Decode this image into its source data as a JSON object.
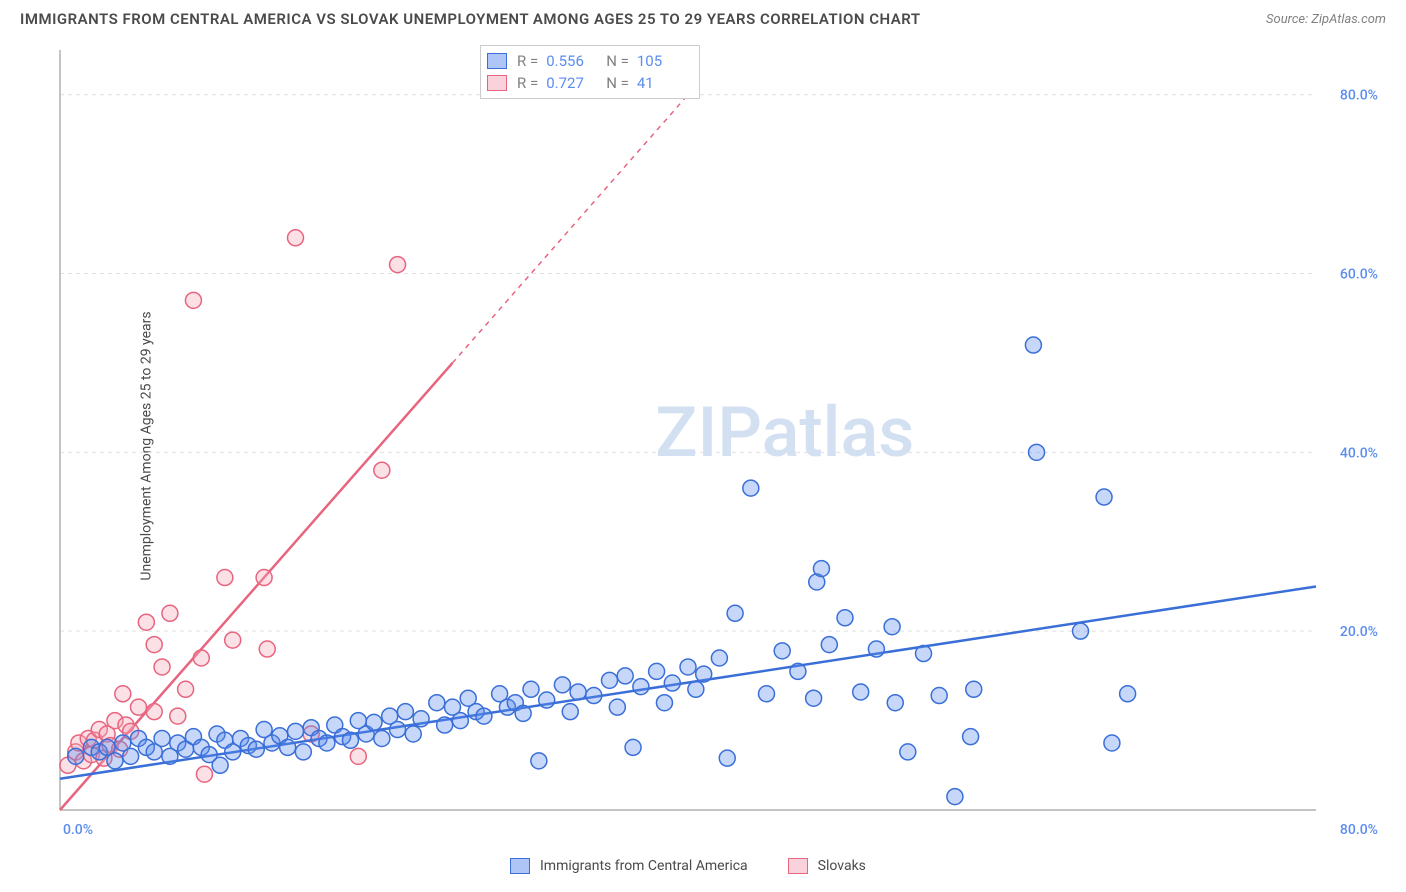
{
  "title": "IMMIGRANTS FROM CENTRAL AMERICA VS SLOVAK UNEMPLOYMENT AMONG AGES 25 TO 29 YEARS CORRELATION CHART",
  "source": "Source: ZipAtlas.com",
  "ylabel": "Unemployment Among Ages 25 to 29 years",
  "watermark": "ZIPatlas",
  "chart": {
    "type": "scatter",
    "background_color": "#ffffff",
    "grid_color": "#e0e0e0",
    "axis_color": "#b0b0b0",
    "title_color": "#4a4a4a",
    "label_fontsize": 14,
    "title_fontsize": 15,
    "xlim": [
      0,
      80
    ],
    "ylim": [
      0,
      85
    ],
    "ytick_step": 20,
    "yticks": [
      "20.0%",
      "40.0%",
      "60.0%",
      "80.0%"
    ],
    "x_min_label": "0.0%",
    "x_max_label": "80.0%",
    "marker_radius": 8,
    "marker_opacity": 0.35,
    "trend_line_width": 2.5
  },
  "series": [
    {
      "name": "Immigrants from Central America",
      "color": "#5b8def",
      "stroke": "#3a6fd8",
      "r": "0.556",
      "n": "105",
      "trend": {
        "x1": 0,
        "y1": 3.5,
        "x2": 80,
        "y2": 25,
        "solid_until_x": 80
      },
      "points": [
        [
          1,
          6
        ],
        [
          2,
          7
        ],
        [
          2.5,
          6.5
        ],
        [
          3,
          7
        ],
        [
          3.5,
          5.5
        ],
        [
          4,
          7.5
        ],
        [
          4.5,
          6
        ],
        [
          5,
          8
        ],
        [
          5.5,
          7
        ],
        [
          6,
          6.5
        ],
        [
          6.5,
          8
        ],
        [
          7,
          6
        ],
        [
          7.5,
          7.5
        ],
        [
          8,
          6.8
        ],
        [
          8.5,
          8.2
        ],
        [
          9,
          7
        ],
        [
          9.5,
          6.2
        ],
        [
          10,
          8.5
        ],
        [
          10.2,
          5
        ],
        [
          10.5,
          7.8
        ],
        [
          11,
          6.5
        ],
        [
          11.5,
          8
        ],
        [
          12,
          7.2
        ],
        [
          12.5,
          6.8
        ],
        [
          13,
          9
        ],
        [
          13.5,
          7.5
        ],
        [
          14,
          8.3
        ],
        [
          14.5,
          7
        ],
        [
          15,
          8.8
        ],
        [
          15.5,
          6.5
        ],
        [
          16,
          9.2
        ],
        [
          16.5,
          8
        ],
        [
          17,
          7.5
        ],
        [
          17.5,
          9.5
        ],
        [
          18,
          8.2
        ],
        [
          18.5,
          7.8
        ],
        [
          19,
          10
        ],
        [
          19.5,
          8.5
        ],
        [
          20,
          9.8
        ],
        [
          20.5,
          8
        ],
        [
          21,
          10.5
        ],
        [
          21.5,
          9
        ],
        [
          22,
          11
        ],
        [
          22.5,
          8.5
        ],
        [
          23,
          10.2
        ],
        [
          24,
          12
        ],
        [
          24.5,
          9.5
        ],
        [
          25,
          11.5
        ],
        [
          25.5,
          10
        ],
        [
          26,
          12.5
        ],
        [
          26.5,
          11
        ],
        [
          27,
          10.5
        ],
        [
          28,
          13
        ],
        [
          28.5,
          11.5
        ],
        [
          29,
          12
        ],
        [
          29.5,
          10.8
        ],
        [
          30,
          13.5
        ],
        [
          30.5,
          5.5
        ],
        [
          31,
          12.3
        ],
        [
          32,
          14
        ],
        [
          32.5,
          11
        ],
        [
          33,
          13.2
        ],
        [
          34,
          12.8
        ],
        [
          35,
          14.5
        ],
        [
          35.5,
          11.5
        ],
        [
          36,
          15
        ],
        [
          36.5,
          7
        ],
        [
          37,
          13.8
        ],
        [
          38,
          15.5
        ],
        [
          38.5,
          12
        ],
        [
          39,
          14.2
        ],
        [
          40,
          16
        ],
        [
          40.5,
          13.5
        ],
        [
          41,
          15.2
        ],
        [
          42,
          17
        ],
        [
          42.5,
          5.8
        ],
        [
          43,
          22
        ],
        [
          44,
          36
        ],
        [
          45,
          13
        ],
        [
          46,
          17.8
        ],
        [
          47,
          15.5
        ],
        [
          48,
          12.5
        ],
        [
          48.2,
          25.5
        ],
        [
          48.5,
          27
        ],
        [
          49,
          18.5
        ],
        [
          50,
          21.5
        ],
        [
          51,
          13.2
        ],
        [
          52,
          18
        ],
        [
          53,
          20.5
        ],
        [
          53.2,
          12
        ],
        [
          54,
          6.5
        ],
        [
          55,
          17.5
        ],
        [
          56,
          12.8
        ],
        [
          57,
          1.5
        ],
        [
          58,
          8.2
        ],
        [
          58.2,
          13.5
        ],
        [
          62,
          52
        ],
        [
          62.2,
          40
        ],
        [
          65,
          20
        ],
        [
          66.5,
          35
        ],
        [
          67,
          7.5
        ],
        [
          68,
          13
        ]
      ]
    },
    {
      "name": "Slovaks",
      "color": "#f4a6b8",
      "stroke": "#e8647f",
      "r": "0.727",
      "n": "41",
      "trend": {
        "x1": 0,
        "y1": 0,
        "x2": 40,
        "y2": 80,
        "solid_until_x": 25
      },
      "points": [
        [
          0.5,
          5
        ],
        [
          1,
          6.5
        ],
        [
          1.2,
          7.5
        ],
        [
          1.5,
          5.5
        ],
        [
          1.8,
          8
        ],
        [
          2,
          6.2
        ],
        [
          2.2,
          7.8
        ],
        [
          2.5,
          9
        ],
        [
          2.8,
          5.8
        ],
        [
          3,
          8.5
        ],
        [
          3.2,
          7.2
        ],
        [
          3.5,
          10
        ],
        [
          3.8,
          6.8
        ],
        [
          4,
          13
        ],
        [
          4.2,
          9.5
        ],
        [
          4.5,
          8.8
        ],
        [
          5,
          11.5
        ],
        [
          5.5,
          21
        ],
        [
          6,
          18.5
        ],
        [
          6,
          11
        ],
        [
          6.5,
          16
        ],
        [
          7,
          22
        ],
        [
          7.5,
          10.5
        ],
        [
          8,
          13.5
        ],
        [
          8.5,
          57
        ],
        [
          9,
          17
        ],
        [
          9.2,
          4
        ],
        [
          10.5,
          26
        ],
        [
          11,
          19
        ],
        [
          13,
          26
        ],
        [
          13.2,
          18
        ],
        [
          15,
          64
        ],
        [
          16,
          8.5
        ],
        [
          19,
          6
        ],
        [
          20.5,
          38
        ],
        [
          21.5,
          61
        ]
      ]
    }
  ],
  "legend_top": {
    "r_label": "R =",
    "n_label": "N ="
  },
  "legend_bottom": {
    "series1": "Immigrants from Central America",
    "series2": "Slovaks"
  }
}
